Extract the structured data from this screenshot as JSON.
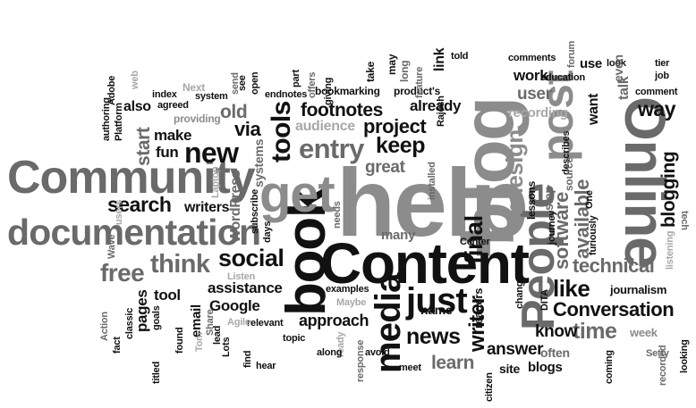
{
  "word_cloud": {
    "words": [
      {
        "text": "help",
        "tone": "gray"
      },
      {
        "text": "Content",
        "tone": "dark"
      },
      {
        "text": "Community",
        "tone": "gray"
      },
      {
        "text": "documentation",
        "tone": "gray"
      },
      {
        "text": "blog",
        "tone": "gray"
      },
      {
        "text": "book",
        "tone": "dark"
      },
      {
        "text": "Online",
        "tone": "gray"
      },
      {
        "text": "People",
        "tone": "gray"
      },
      {
        "text": "get",
        "tone": "gray"
      },
      {
        "text": "post",
        "tone": "gray"
      },
      {
        "text": "new",
        "tone": "dark"
      },
      {
        "text": "media",
        "tone": "dark"
      },
      {
        "text": "just",
        "tone": "dark"
      },
      {
        "text": "Indesign",
        "tone": "gray"
      },
      {
        "text": "tools",
        "tone": "dark"
      },
      {
        "text": "entry",
        "tone": "gray"
      },
      {
        "text": "project",
        "tone": "dark"
      },
      {
        "text": "keep",
        "tone": "dark"
      },
      {
        "text": "footnotes",
        "tone": "dark"
      },
      {
        "text": "audience",
        "tone": "light"
      },
      {
        "text": "great",
        "tone": "gray"
      },
      {
        "text": "final",
        "tone": "dark"
      },
      {
        "text": "software",
        "tone": "gray"
      },
      {
        "text": "available",
        "tone": "gray"
      },
      {
        "text": "technical",
        "tone": "gray"
      },
      {
        "text": "blogging",
        "tone": "dark"
      },
      {
        "text": "way",
        "tone": "dark"
      },
      {
        "text": "think",
        "tone": "gray"
      },
      {
        "text": "free",
        "tone": "gray"
      },
      {
        "text": "search",
        "tone": "dark"
      },
      {
        "text": "social",
        "tone": "dark"
      },
      {
        "text": "like",
        "tone": "dark"
      },
      {
        "text": "Conversation",
        "tone": "dark"
      },
      {
        "text": "time",
        "tone": "gray"
      },
      {
        "text": "news",
        "tone": "dark"
      },
      {
        "text": "writer",
        "tone": "dark"
      },
      {
        "text": "answer",
        "tone": "dark"
      },
      {
        "text": "know",
        "tone": "dark"
      },
      {
        "text": "learn",
        "tone": "gray"
      },
      {
        "text": "approach",
        "tone": "dark"
      },
      {
        "text": "assistance",
        "tone": "dark"
      },
      {
        "text": "Google",
        "tone": "dark"
      },
      {
        "text": "email",
        "tone": "dark"
      },
      {
        "text": "tool",
        "tone": "dark"
      },
      {
        "text": "pages",
        "tone": "dark"
      },
      {
        "text": "make",
        "tone": "dark"
      },
      {
        "text": "fun",
        "tone": "dark"
      },
      {
        "text": "writers",
        "tone": "dark"
      },
      {
        "text": "start",
        "tone": "gray"
      },
      {
        "text": "via",
        "tone": "dark"
      },
      {
        "text": "old",
        "tone": "gray"
      },
      {
        "text": "also",
        "tone": "dark"
      },
      {
        "text": "user",
        "tone": "gray"
      },
      {
        "text": "work",
        "tone": "dark"
      },
      {
        "text": "want",
        "tone": "dark"
      },
      {
        "text": "recording",
        "tone": "light"
      },
      {
        "text": "already",
        "tone": "dark"
      },
      {
        "text": "bookmarking",
        "tone": "dark"
      },
      {
        "text": "product's",
        "tone": "dark"
      },
      {
        "text": "comments",
        "tone": "dark"
      },
      {
        "text": "education",
        "tone": "dark"
      },
      {
        "text": "journalism",
        "tone": "dark"
      },
      {
        "text": "blogs",
        "tone": "dark"
      },
      {
        "text": "often",
        "tone": "gray"
      },
      {
        "text": "site",
        "tone": "dark"
      },
      {
        "text": "name",
        "tone": "dark"
      },
      {
        "text": "many",
        "tone": "gray"
      },
      {
        "text": "readers",
        "tone": "dark"
      },
      {
        "text": "week",
        "tone": "gray"
      },
      {
        "text": "WordPress",
        "tone": "gray"
      },
      {
        "text": "systems",
        "tone": "gray"
      },
      {
        "text": "system",
        "tone": "dark"
      },
      {
        "text": "agreed",
        "tone": "dark"
      },
      {
        "text": "providing",
        "tone": "gray"
      },
      {
        "text": "index",
        "tone": "dark"
      },
      {
        "text": "Next",
        "tone": "light"
      },
      {
        "text": "endnotes",
        "tone": "dark"
      },
      {
        "text": "giving",
        "tone": "dark"
      },
      {
        "text": "offers",
        "tone": "gray"
      },
      {
        "text": "part",
        "tone": "dark"
      },
      {
        "text": "take",
        "tone": "dark"
      },
      {
        "text": "may",
        "tone": "dark"
      },
      {
        "text": "long",
        "tone": "gray"
      },
      {
        "text": "link",
        "tone": "dark"
      },
      {
        "text": "told",
        "tone": "dark"
      },
      {
        "text": "Rajesh",
        "tone": "dark"
      },
      {
        "text": "feature",
        "tone": "gray"
      },
      {
        "text": "forum",
        "tone": "gray"
      },
      {
        "text": "use",
        "tone": "dark"
      },
      {
        "text": "look",
        "tone": "dark"
      },
      {
        "text": "even",
        "tone": "gray"
      },
      {
        "text": "talk",
        "tone": "gray"
      },
      {
        "text": "comment",
        "tone": "dark"
      },
      {
        "text": "tier",
        "tone": "dark"
      },
      {
        "text": "job",
        "tone": "dark"
      },
      {
        "text": "tech",
        "tone": "gray"
      },
      {
        "text": "step",
        "tone": "gray"
      },
      {
        "text": "describes",
        "tone": "dark"
      },
      {
        "text": "One",
        "tone": "dark"
      },
      {
        "text": "source",
        "tone": "gray"
      },
      {
        "text": "lessons",
        "tone": "dark"
      },
      {
        "text": "furiously",
        "tone": "dark"
      },
      {
        "text": "journey",
        "tone": "dark"
      },
      {
        "text": "listening",
        "tone": "light"
      },
      {
        "text": "DITA",
        "tone": "dark"
      },
      {
        "text": "Setty",
        "tone": "gray"
      },
      {
        "text": "looking",
        "tone": "dark"
      },
      {
        "text": "recorded",
        "tone": "gray"
      },
      {
        "text": "coming",
        "tone": "dark"
      },
      {
        "text": "changes",
        "tone": "dark"
      },
      {
        "text": "Center",
        "tone": "dark"
      },
      {
        "text": "installed",
        "tone": "gray"
      },
      {
        "text": "needs",
        "tone": "gray"
      },
      {
        "text": "examples",
        "tone": "dark"
      },
      {
        "text": "Maybe",
        "tone": "light"
      },
      {
        "text": "ready",
        "tone": "light"
      },
      {
        "text": "topic",
        "tone": "dark"
      },
      {
        "text": "along",
        "tone": "dark"
      },
      {
        "text": "avoid",
        "tone": "dark"
      },
      {
        "text": "meet",
        "tone": "dark"
      },
      {
        "text": "citizen",
        "tone": "dark"
      },
      {
        "text": "response",
        "tone": "gray"
      },
      {
        "text": "hear",
        "tone": "dark"
      },
      {
        "text": "relevant",
        "tone": "dark"
      },
      {
        "text": "find",
        "tone": "dark"
      },
      {
        "text": "Lots",
        "tone": "dark"
      },
      {
        "text": "Agile",
        "tone": "light"
      },
      {
        "text": "lead",
        "tone": "dark"
      },
      {
        "text": "Share",
        "tone": "gray"
      },
      {
        "text": "Listen",
        "tone": "light"
      },
      {
        "text": "Tom",
        "tone": "light"
      },
      {
        "text": "found",
        "tone": "dark"
      },
      {
        "text": "titled",
        "tone": "dark"
      },
      {
        "text": "goals",
        "tone": "dark"
      },
      {
        "text": "classic",
        "tone": "dark"
      },
      {
        "text": "fact",
        "tone": "dark"
      },
      {
        "text": "Action",
        "tone": "gray"
      },
      {
        "text": "Wave",
        "tone": "gray"
      },
      {
        "text": "users",
        "tone": "light"
      },
      {
        "text": "Platform",
        "tone": "dark"
      },
      {
        "text": "authoring",
        "tone": "dark"
      },
      {
        "text": "Adobe",
        "tone": "dark"
      },
      {
        "text": "web",
        "tone": "light"
      },
      {
        "text": "Laptop",
        "tone": "light"
      },
      {
        "text": "see",
        "tone": "dark"
      },
      {
        "text": "send",
        "tone": "gray"
      },
      {
        "text": "open",
        "tone": "dark"
      },
      {
        "text": "subscribe",
        "tone": "dark"
      },
      {
        "text": "days",
        "tone": "dark"
      }
    ]
  }
}
